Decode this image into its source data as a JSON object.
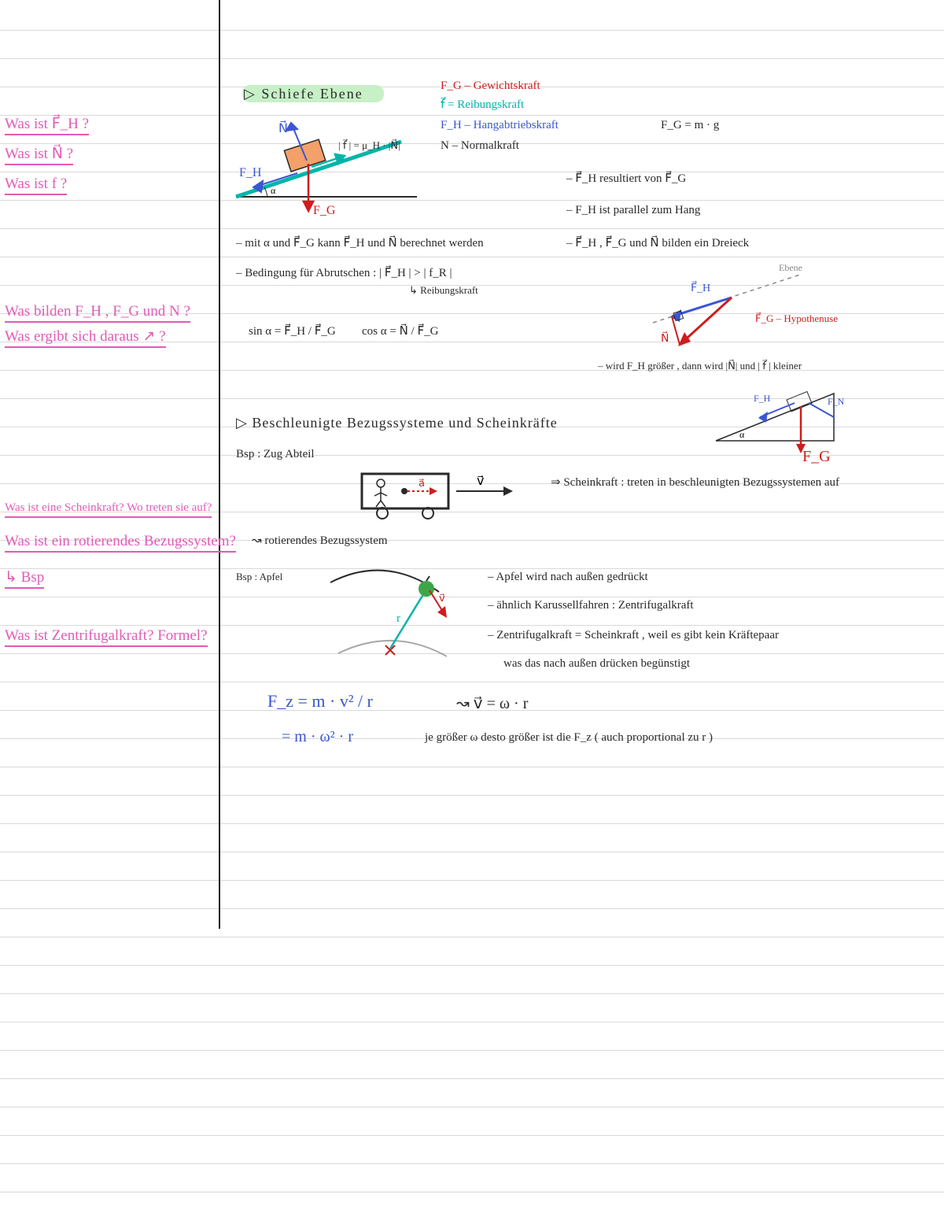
{
  "colors": {
    "ink": "#2a2a2a",
    "pink": "#e15bb6",
    "blue": "#3b55d4",
    "cyan": "#00b5a8",
    "red": "#cf1d1d",
    "orange": "#f3a06a",
    "green": "#3fa648",
    "highlight": "#c7f0c7",
    "rule": "#d9d9d9"
  },
  "title": "▷ Schiefe  Ebene",
  "leftQuestions": [
    "Was ist  F⃗_H  ?",
    "Was ist  N⃗  ?",
    "Was ist  f  ?",
    "Was bilden  F_H , F_G  und  N   ?",
    "Was   ergibt  sich  daraus  ↗  ?",
    "Was  ist  eine   Scheinkraft?  Wo treten sie auf?",
    "Was  ist  ein  rotierendes   Bezugssystem?",
    "↳ Bsp",
    "Was  ist  Zentrifugalkraft?  Formel?"
  ],
  "legend": {
    "fg": "F_G   –   Gewichtskraft",
    "f": "f⃗    =   Reibungskraft",
    "fh": "F_H  –  Hangabtriebskraft",
    "n": "N  –  Normalkraft",
    "fgFormula": "F_G  =  m · g"
  },
  "inclineDiagram": {
    "type": "diagram",
    "alpha_deg": 20,
    "ground_color": "#2a2a2a",
    "slope_color": "#00b5a8",
    "slope_width": 5,
    "block_fill": "#f3a06a",
    "block_stroke": "#2a2a2a",
    "vec_N": {
      "color": "#3b55d4"
    },
    "vec_FH": {
      "color": "#3b55d4"
    },
    "vec_FG": {
      "color": "#cf1d1d"
    },
    "vec_f": {
      "color": "#00b5a8"
    },
    "friction_eq": "| f⃗ | = μ_H · |N⃗|"
  },
  "notes_main": {
    "l1": "– mit   α   und  F⃗_G   kann  F⃗_H  und  N⃗   berechnet  werden",
    "l2": "– Bedingung  für  Abrutschen : | F⃗_H |  > | f_R |",
    "l2sub": "↳ Reibungskraft",
    "trig_sin": "sin α  =  F⃗_H / F⃗_G",
    "trig_cos": "cos α  =  N⃗ / F⃗_G"
  },
  "rightNotes": {
    "r1": "–  F⃗_H   resultiert   von   F⃗_G",
    "r2": "–  F_H   ist  parallel   zum   Hang",
    "r3": "–  F⃗_H  ,  F⃗_G   und   N⃗   bilden  ein  Dreieck",
    "tri_label_plane": "Ebene",
    "tri_label_fg": "F⃗_G  – Hypothenuse",
    "r4": "–  wird   F_H  größer , dann  wird  |N⃗|  und  | f⃗ |  kleiner"
  },
  "triangleDiagram": {
    "type": "diagram",
    "FH_color": "#3b55d4",
    "FG_color": "#cf1d1d",
    "N_color": "#cf1d1d",
    "plane_color": "#888",
    "plane_dash": "4,4"
  },
  "miniIncline": {
    "type": "diagram",
    "stroke": "#2a2a2a",
    "FH_color": "#3b55d4",
    "FG_color": "#cf1d1d",
    "FN_color": "#3b55d4"
  },
  "section2": {
    "title": "▷  Beschleunigte  Bezugssysteme    und   Scheinkräfte",
    "bsp": "Bsp  :    Zug   Abteil",
    "scheinkraft": "⇒  Scheinkraft   :  treten  in  beschleunigten  Bezugssystemen  auf",
    "rot": "↝  rotierendes   Bezugssystem",
    "apfel": "Bsp : Apfel",
    "apfel_n1": "–  Apfel  wird   nach   außen  gedrückt",
    "apfel_n2": "–  ähnlich  Karussellfahren  :  Zentrifugalkraft",
    "apfel_n3": "–  Zentrifugalkraft  = Scheinkraft  , weil  es  gibt  kein  Kräftepaar",
    "apfel_n4": "was   das   nach   außen  drücken   begünstigt",
    "fz1": "F_z   =  m  ·  v² / r",
    "fz1b": "↝    v⃗  =  ω · r",
    "fz2": "=  m · ω² · r",
    "fz2b": "je   größer  ω   desto  größer  ist  die   F_z      ( auch  proportional  zu  r )"
  },
  "trainDiagram": {
    "type": "diagram",
    "box_stroke": "#2a2a2a",
    "a_color": "#cf1d1d",
    "v_color": "#2a2a2a"
  },
  "appleDiagram": {
    "type": "diagram",
    "path_color": "#2a2a2a",
    "r_color": "#00b5a8",
    "v_color": "#cf1d1d",
    "apple_color": "#3fa648",
    "center_color": "#cf1d1d"
  }
}
